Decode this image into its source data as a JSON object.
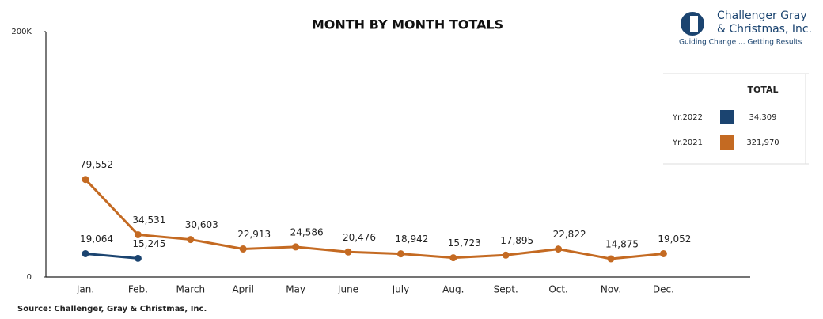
{
  "chart_data": {
    "type": "line",
    "title": "MONTH BY MONTH TOTALS",
    "categories": [
      "Jan.",
      "Feb.",
      "March",
      "April",
      "May",
      "June",
      "July",
      "Aug.",
      "Sept.",
      "Oct.",
      "Nov.",
      "Dec."
    ],
    "series": [
      {
        "name": "Yr.2022",
        "color": "#1b4470",
        "total": "34,309",
        "values": [
          19064,
          15245,
          null,
          null,
          null,
          null,
          null,
          null,
          null,
          null,
          null,
          null
        ],
        "value_labels": [
          "19,064",
          "15,245",
          null,
          null,
          null,
          null,
          null,
          null,
          null,
          null,
          null,
          null
        ]
      },
      {
        "name": "Yr.2021",
        "color": "#c46a22",
        "total": "321,970",
        "values": [
          79552,
          34531,
          30603,
          22913,
          24586,
          20476,
          18942,
          15723,
          17895,
          22822,
          14875,
          19052
        ],
        "value_labels": [
          "79,552",
          "34,531",
          "30,603",
          "22,913",
          "24,586",
          "20,476",
          "18,942",
          "15,723",
          "17,895",
          "22,822",
          "14,875",
          "19,052"
        ]
      }
    ],
    "legend_title": "TOTAL",
    "ylim": [
      0,
      200000
    ],
    "yticks": [
      0,
      {
        "value": 200000,
        "label": "200K"
      }
    ],
    "grid": false,
    "source": "Source: Challenger, Gray & Christmas, Inc.",
    "logo": {
      "line1": "Challenger Gray",
      "line2": "& Christmas, Inc.",
      "tagline": "Guiding Change ... Getting Results"
    }
  }
}
